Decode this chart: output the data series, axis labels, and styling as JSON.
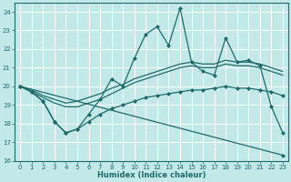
{
  "xlabel": "Humidex (Indice chaleur)",
  "xlim": [
    -0.5,
    23.5
  ],
  "ylim": [
    16,
    24.5
  ],
  "yticks": [
    16,
    17,
    18,
    19,
    20,
    21,
    22,
    23,
    24
  ],
  "xticks": [
    0,
    1,
    2,
    3,
    4,
    5,
    6,
    7,
    8,
    9,
    10,
    11,
    12,
    13,
    14,
    15,
    16,
    17,
    18,
    19,
    20,
    21,
    22,
    23
  ],
  "bg_color": "#c2e8e8",
  "line_color": "#1e6b6b",
  "grid_color": "#ffffff",
  "series": [
    {
      "x": [
        0,
        1,
        2,
        3,
        4,
        5,
        6,
        7,
        8,
        9,
        10,
        11,
        12,
        13,
        14,
        15,
        16,
        17,
        18,
        19,
        20,
        21,
        22,
        23
      ],
      "y": [
        20.0,
        19.7,
        19.2,
        18.1,
        17.5,
        17.7,
        18.5,
        19.3,
        20.4,
        20.0,
        21.5,
        22.8,
        23.2,
        22.2,
        24.2,
        21.3,
        20.8,
        20.6,
        22.6,
        21.3,
        21.4,
        21.1,
        18.9,
        17.5
      ],
      "marker": "D",
      "ms": 2.0,
      "lw": 0.9
    },
    {
      "x": [
        0,
        1,
        2,
        3,
        4,
        5,
        6,
        7,
        8,
        9,
        10,
        11,
        12,
        13,
        14,
        15,
        16,
        17,
        18,
        19,
        20,
        21,
        22,
        23
      ],
      "y": [
        20.0,
        19.8,
        19.5,
        19.3,
        19.1,
        19.2,
        19.4,
        19.6,
        19.9,
        20.1,
        20.4,
        20.6,
        20.8,
        21.0,
        21.2,
        21.3,
        21.2,
        21.2,
        21.4,
        21.3,
        21.3,
        21.2,
        21.0,
        20.8
      ],
      "marker": null,
      "ms": 0,
      "lw": 0.9
    },
    {
      "x": [
        0,
        1,
        2,
        3,
        4,
        5,
        6,
        7,
        8,
        9,
        10,
        11,
        12,
        13,
        14,
        15,
        16,
        17,
        18,
        19,
        20,
        21,
        22,
        23
      ],
      "y": [
        20.0,
        19.7,
        19.4,
        19.1,
        18.9,
        18.9,
        19.1,
        19.3,
        19.6,
        19.9,
        20.2,
        20.4,
        20.6,
        20.8,
        21.0,
        21.1,
        21.0,
        21.0,
        21.2,
        21.1,
        21.1,
        21.0,
        20.8,
        20.6
      ],
      "marker": null,
      "ms": 0,
      "lw": 0.9
    },
    {
      "x": [
        0,
        1,
        2,
        3,
        4,
        5,
        6,
        7,
        8,
        9,
        10,
        11,
        12,
        13,
        14,
        15,
        16,
        17,
        18,
        19,
        20,
        21,
        22,
        23
      ],
      "y": [
        20.0,
        19.7,
        19.2,
        18.1,
        17.5,
        17.7,
        18.1,
        18.5,
        18.8,
        19.0,
        19.2,
        19.4,
        19.5,
        19.6,
        19.7,
        19.8,
        19.8,
        19.9,
        20.0,
        19.9,
        19.9,
        19.8,
        19.7,
        19.5
      ],
      "marker": "D",
      "ms": 2.0,
      "lw": 0.9
    },
    {
      "x": [
        0,
        23
      ],
      "y": [
        20.0,
        16.3
      ],
      "marker": "D",
      "ms": 2.0,
      "lw": 0.9
    }
  ]
}
